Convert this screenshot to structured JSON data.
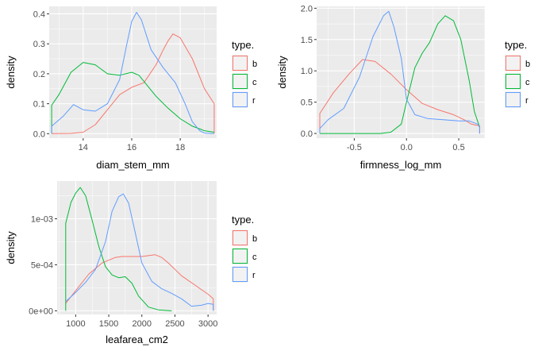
{
  "colors": {
    "b": "#F8766D",
    "c": "#00BA38",
    "r": "#619CFF",
    "panel": "#EBEBEB",
    "grid": "#FFFFFF"
  },
  "chart_data": [
    {
      "type": "line",
      "xlabel": "diam_stem_mm",
      "ylabel": "density",
      "xlim": [
        12.6,
        19.5
      ],
      "ylim": [
        -0.015,
        0.425
      ],
      "xticks": [
        14,
        16,
        18
      ],
      "xtick_labels": [
        "14",
        "16",
        "18"
      ],
      "yticks": [
        0.0,
        0.1,
        0.2,
        0.3,
        0.4
      ],
      "ytick_labels": [
        "0.0",
        "0.1",
        "0.2",
        "0.3",
        "0.4"
      ],
      "legend": {
        "title": "type.",
        "entries": [
          "b",
          "c",
          "r"
        ],
        "placement": "right"
      },
      "series": [
        {
          "name": "b",
          "x": [
            12.7,
            13.5,
            14.0,
            14.5,
            15.0,
            15.5,
            16.0,
            16.5,
            17.0,
            17.3,
            17.5,
            17.7,
            18.0,
            18.5,
            19.0,
            19.4,
            19.4
          ],
          "y": [
            0.0,
            0.001,
            0.005,
            0.03,
            0.08,
            0.13,
            0.155,
            0.17,
            0.23,
            0.28,
            0.31,
            0.333,
            0.32,
            0.25,
            0.15,
            0.1,
            0.0
          ]
        },
        {
          "name": "c",
          "x": [
            12.7,
            12.7,
            13.0,
            13.5,
            14.0,
            14.5,
            15.0,
            15.5,
            16.0,
            16.3,
            16.6,
            17.0,
            17.5,
            18.0,
            18.5,
            19.0,
            19.4
          ],
          "y": [
            0.0,
            0.095,
            0.13,
            0.205,
            0.238,
            0.23,
            0.2,
            0.195,
            0.205,
            0.195,
            0.165,
            0.125,
            0.085,
            0.05,
            0.025,
            0.01,
            0.005
          ]
        },
        {
          "name": "r",
          "x": [
            12.7,
            12.7,
            13.2,
            13.6,
            14.0,
            14.5,
            15.0,
            15.5,
            15.8,
            16.0,
            16.2,
            16.4,
            16.8,
            17.3,
            17.8,
            18.2,
            18.5,
            18.8,
            19.0,
            19.4
          ],
          "y": [
            0.0,
            0.025,
            0.06,
            0.097,
            0.08,
            0.075,
            0.1,
            0.18,
            0.3,
            0.375,
            0.405,
            0.38,
            0.28,
            0.22,
            0.17,
            0.1,
            0.04,
            0.01,
            0.002,
            0.0
          ]
        }
      ]
    },
    {
      "type": "line",
      "xlabel": "firmness_log_mm",
      "ylabel": "density",
      "xlim": [
        -0.86,
        0.75
      ],
      "ylim": [
        -0.075,
        2.03
      ],
      "xticks": [
        -0.5,
        0.0,
        0.5
      ],
      "xtick_labels": [
        "-0.5",
        "0.0",
        "0.5"
      ],
      "yticks": [
        0.0,
        0.5,
        1.0,
        1.5,
        2.0
      ],
      "ytick_labels": [
        "0.0",
        "0.5",
        "1.0",
        "1.5",
        "2.0"
      ],
      "legend": {
        "title": "type.",
        "entries": [
          "b",
          "c",
          "r"
        ],
        "placement": "right"
      },
      "series": [
        {
          "name": "b",
          "x": [
            -0.83,
            -0.83,
            -0.7,
            -0.55,
            -0.42,
            -0.3,
            -0.15,
            0.0,
            0.15,
            0.3,
            0.45,
            0.55,
            0.62,
            0.7,
            0.7
          ],
          "y": [
            0.0,
            0.32,
            0.65,
            0.95,
            1.18,
            1.15,
            0.95,
            0.7,
            0.48,
            0.38,
            0.3,
            0.22,
            0.15,
            0.12,
            0.0
          ]
        },
        {
          "name": "c",
          "x": [
            -0.83,
            -0.25,
            -0.15,
            -0.05,
            0.0,
            0.08,
            0.15,
            0.22,
            0.3,
            0.37,
            0.45,
            0.52,
            0.6,
            0.65,
            0.7
          ],
          "y": [
            0.0,
            0.0,
            0.02,
            0.15,
            0.5,
            1.05,
            1.28,
            1.45,
            1.75,
            1.88,
            1.8,
            1.5,
            0.85,
            0.35,
            0.1
          ]
        },
        {
          "name": "r",
          "x": [
            -0.83,
            -0.83,
            -0.75,
            -0.6,
            -0.45,
            -0.32,
            -0.22,
            -0.17,
            -0.12,
            -0.05,
            0.0,
            0.08,
            0.2,
            0.35,
            0.5,
            0.6,
            0.68,
            0.7,
            0.7
          ],
          "y": [
            0.0,
            0.08,
            0.22,
            0.4,
            0.9,
            1.55,
            1.88,
            1.95,
            1.7,
            1.2,
            0.55,
            0.3,
            0.24,
            0.22,
            0.2,
            0.2,
            0.15,
            0.12,
            0.0
          ]
        }
      ]
    },
    {
      "type": "line",
      "xlabel": "leafarea_cm2",
      "ylabel": "density",
      "xlim": [
        720,
        3130
      ],
      "ylim": [
        -4e-05,
        0.00141
      ],
      "xticks": [
        1000,
        1500,
        2000,
        2500,
        3000
      ],
      "xtick_labels": [
        "1000",
        "1500",
        "2000",
        "2500",
        "3000"
      ],
      "yticks": [
        0.0,
        0.0005,
        0.001
      ],
      "ytick_labels": [
        "0e+00",
        "5e-04",
        "1e-03"
      ],
      "legend": {
        "title": "type.",
        "entries": [
          "b",
          "c",
          "r"
        ],
        "placement": "right"
      },
      "series": [
        {
          "name": "b",
          "x": [
            850,
            1000,
            1200,
            1400,
            1600,
            1700,
            1800,
            2000,
            2200,
            2300,
            2400,
            2600,
            2800,
            3000,
            3080,
            3080
          ],
          "y": [
            8e-05,
            0.00022,
            0.0004,
            0.00052,
            0.00058,
            0.00059,
            0.00059,
            0.00059,
            0.00061,
            0.00058,
            0.00052,
            0.00038,
            0.00028,
            0.00018,
            0.00013,
            0.0
          ]
        },
        {
          "name": "c",
          "x": [
            850,
            850,
            930,
            1000,
            1070,
            1150,
            1250,
            1350,
            1450,
            1550,
            1650,
            1750,
            1850,
            1950,
            2100,
            2250,
            2450
          ],
          "y": [
            0.0,
            0.00095,
            0.00118,
            0.00128,
            0.00134,
            0.00125,
            0.00098,
            0.0007,
            0.00048,
            0.00039,
            0.00036,
            0.00037,
            0.0003,
            0.00016,
            4e-05,
            1e-05,
            0.0
          ]
        },
        {
          "name": "r",
          "x": [
            850,
            1000,
            1150,
            1300,
            1450,
            1550,
            1650,
            1720,
            1800,
            1900,
            2000,
            2150,
            2300,
            2450,
            2600,
            2750,
            2900,
            3000,
            3080,
            3080
          ],
          "y": [
            0.0001,
            0.0002,
            0.00031,
            0.00045,
            0.00075,
            0.00108,
            0.00124,
            0.00127,
            0.00117,
            0.00085,
            0.00052,
            0.00032,
            0.00024,
            0.00019,
            0.00013,
            5e-05,
            6e-05,
            8e-05,
            7e-05,
            0.0
          ]
        }
      ]
    }
  ]
}
